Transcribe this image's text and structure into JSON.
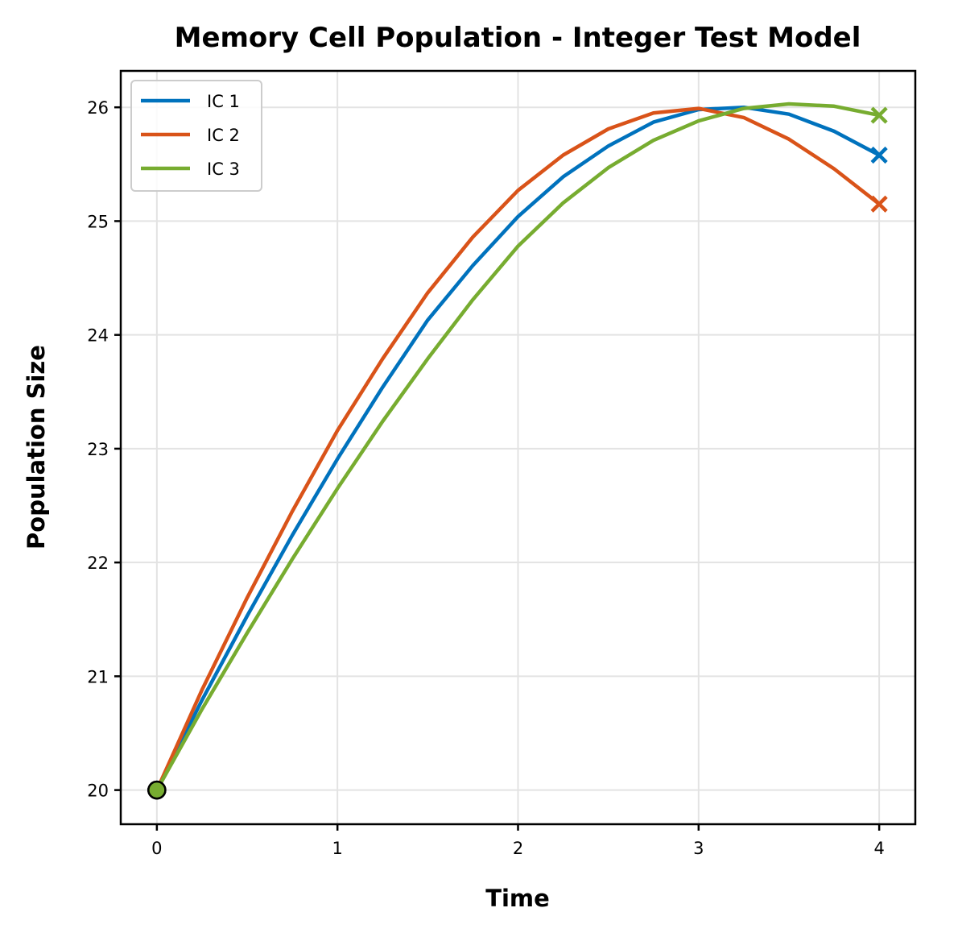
{
  "chart_data": {
    "type": "line",
    "title": "Memory Cell Population - Integer Test Model",
    "xlabel": "Time",
    "ylabel": "Population Size",
    "xlim": [
      -0.2,
      4.2
    ],
    "ylim": [
      19.7,
      26.32
    ],
    "xticks": [
      0,
      1,
      2,
      3,
      4
    ],
    "yticks": [
      20,
      21,
      22,
      23,
      24,
      25,
      26
    ],
    "grid": true,
    "legend_position": "top-left",
    "series": [
      {
        "name": "IC 1",
        "color": "#0072bd",
        "x": [
          0,
          0.25,
          0.5,
          0.75,
          1,
          1.25,
          1.5,
          1.75,
          2,
          2.25,
          2.5,
          2.75,
          3,
          3.25,
          3.5,
          3.75,
          4
        ],
        "y": [
          20,
          20.79,
          21.53,
          22.24,
          22.91,
          23.54,
          24.13,
          24.61,
          25.04,
          25.39,
          25.66,
          25.87,
          25.98,
          26.0,
          25.94,
          25.79,
          25.58
        ]
      },
      {
        "name": "IC 2",
        "color": "#d95319",
        "x": [
          0,
          0.25,
          0.5,
          0.75,
          1,
          1.25,
          1.5,
          1.75,
          2,
          2.25,
          2.5,
          2.75,
          3,
          3.25,
          3.5,
          3.75,
          4
        ],
        "y": [
          20,
          20.88,
          21.69,
          22.45,
          23.16,
          23.79,
          24.37,
          24.86,
          25.27,
          25.58,
          25.81,
          25.95,
          25.99,
          25.91,
          25.72,
          25.46,
          25.15
        ]
      },
      {
        "name": "IC 3",
        "color": "#77ac30",
        "x": [
          0,
          0.25,
          0.5,
          0.75,
          1,
          1.25,
          1.5,
          1.75,
          2,
          2.25,
          2.5,
          2.75,
          3,
          3.25,
          3.5,
          3.75,
          4
        ],
        "y": [
          20,
          20.71,
          21.38,
          22.03,
          22.65,
          23.24,
          23.79,
          24.31,
          24.78,
          25.16,
          25.47,
          25.71,
          25.88,
          25.99,
          26.03,
          26.01,
          25.93
        ]
      }
    ],
    "start_marker": {
      "x": 0,
      "y": 20
    }
  }
}
